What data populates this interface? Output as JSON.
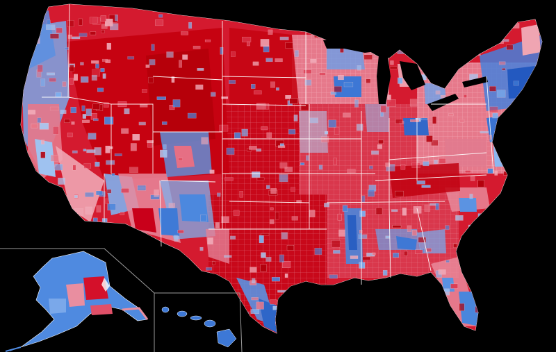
{
  "map": {
    "type": "county-choropleth",
    "background": "#000000",
    "border_color": "#ffffff",
    "palette": {
      "red_strong": "#b3000c",
      "red": "#d40b1e",
      "red_mid": "#de3a50",
      "red_light": "#e9798a",
      "red_pale": "#f1a9b7",
      "blue_pale": "#a9c8f2",
      "blue_light": "#7db0ee",
      "blue": "#4a86dc",
      "blue_strong": "#1f5fbf"
    },
    "regions": [
      "contiguous-us",
      "alaska",
      "hawaii"
    ]
  }
}
